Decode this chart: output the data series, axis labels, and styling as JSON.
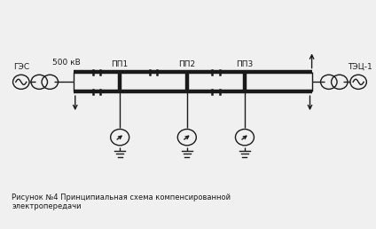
{
  "title_label": "Рисунок №4 Принципиальная схема компенсированной\nэлектропередачи",
  "label_GES": "ГЭС",
  "label_TEZ": "ТЭЦ-1",
  "label_500": "500 кВ",
  "label_PP1": "ПП1",
  "label_PP2": "ПП2",
  "label_PP3": "ПП3",
  "line_color": "#1a1a1a",
  "bg_color": "#f0f0f0",
  "thick_lw": 3.2,
  "thin_lw": 1.0,
  "fig_width": 4.24,
  "fig_height": 2.58,
  "dpi": 100
}
